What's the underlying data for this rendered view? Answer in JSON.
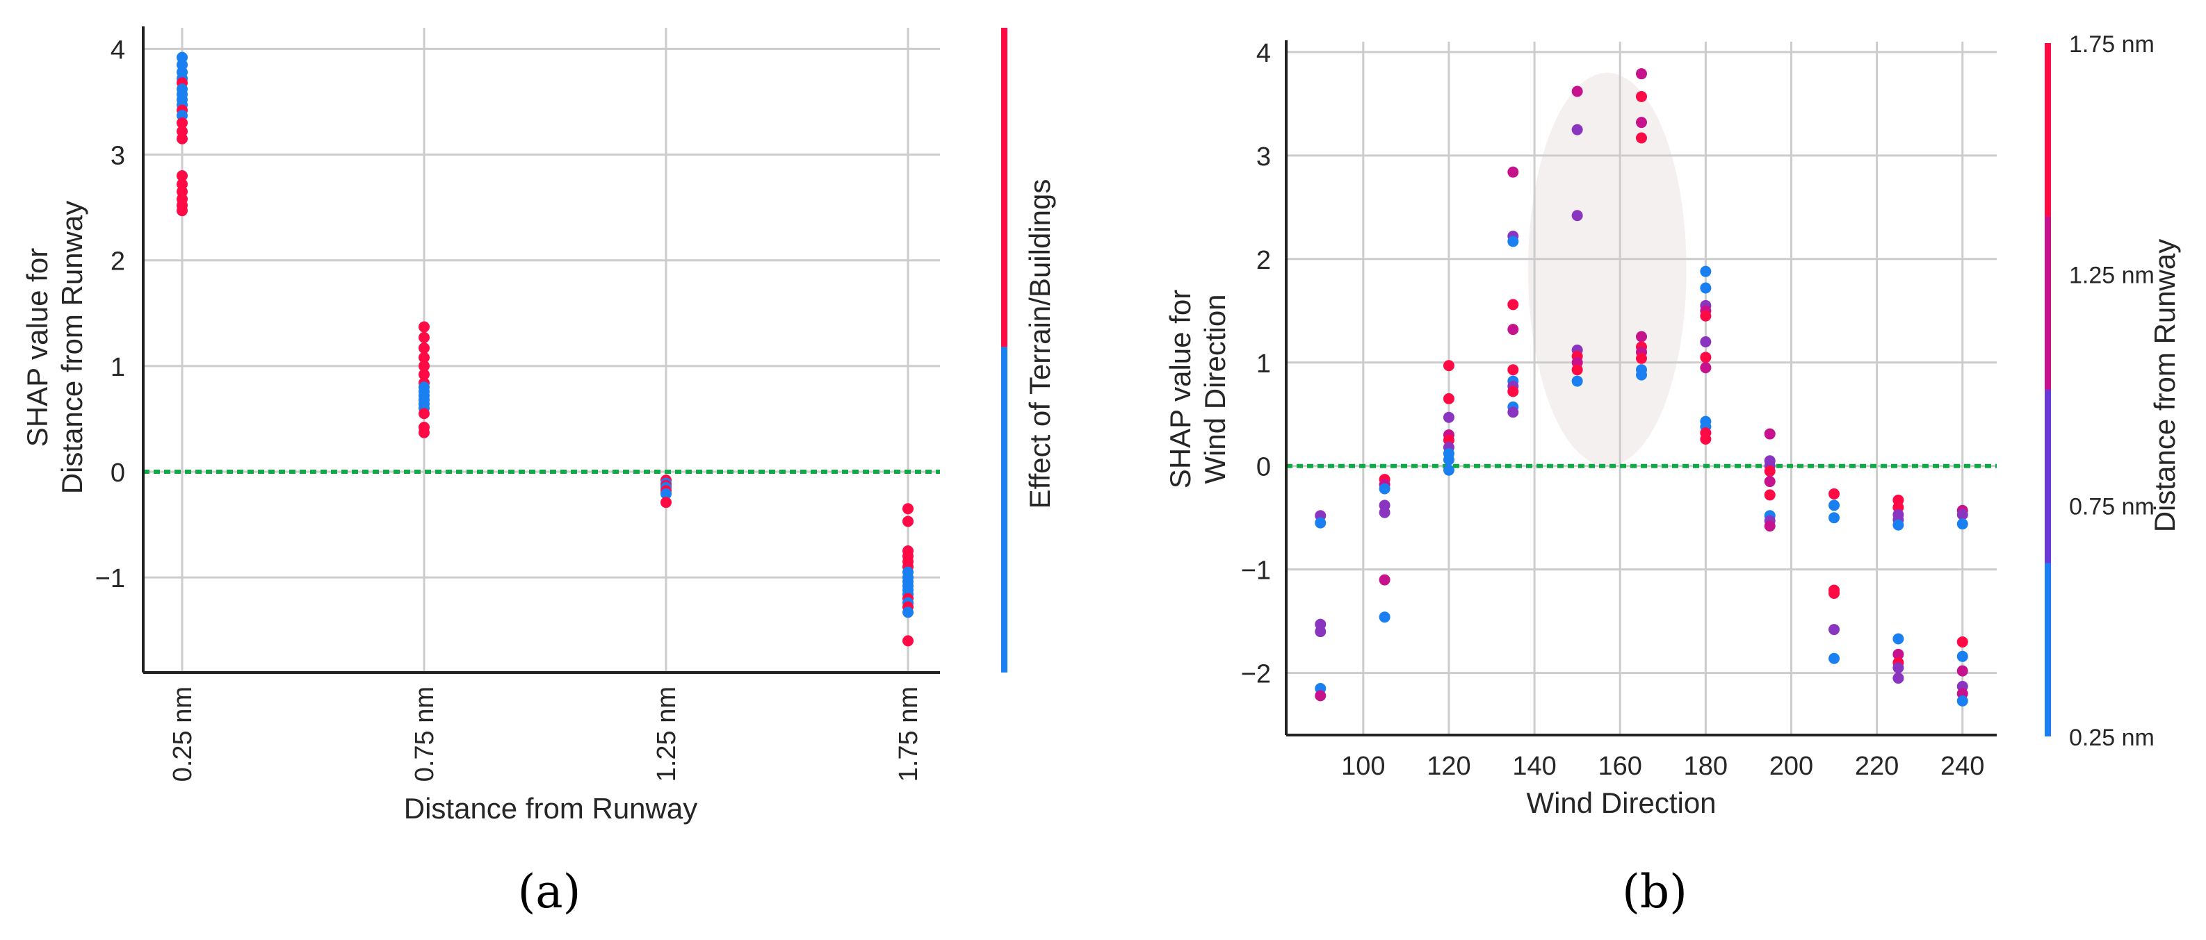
{
  "colors": {
    "red": "#ff0a45",
    "blue": "#1a7ff0",
    "purple_mid": "#8a35c0",
    "magenta": "#c6128c",
    "violet": "#6a3ad6",
    "grid": "#cccccc",
    "zero_line": "#11a848",
    "axis": "#222222",
    "highlight": "#f5f0f0"
  },
  "chart_data": [
    {
      "id": "a",
      "type": "scatter",
      "caption": "(a)",
      "xlabel": "Distance from Runway",
      "ylabel_lines": [
        "SHAP value for",
        "Distance from Runway"
      ],
      "categories": [
        "0.25 nm",
        "0.75 nm",
        "1.25 nm",
        "1.75 nm"
      ],
      "yticks": [
        -1,
        0,
        1,
        2,
        3,
        4
      ],
      "ytick_labels": [
        "−1",
        "0",
        "1",
        "2",
        "3",
        "4"
      ],
      "ylim": [
        -1.9,
        4.2
      ],
      "zero_line": 0,
      "colorbar": {
        "label": "Effect of Terrain/Buildings",
        "segments": [
          "#1a7ff0",
          "#ff0a45"
        ]
      },
      "points": [
        {
          "cat": 0,
          "y": 3.92,
          "c": "blue"
        },
        {
          "cat": 0,
          "y": 3.85,
          "c": "blue"
        },
        {
          "cat": 0,
          "y": 3.78,
          "c": "blue"
        },
        {
          "cat": 0,
          "y": 3.72,
          "c": "blue"
        },
        {
          "cat": 0,
          "y": 3.68,
          "c": "red"
        },
        {
          "cat": 0,
          "y": 3.62,
          "c": "blue"
        },
        {
          "cat": 0,
          "y": 3.57,
          "c": "blue"
        },
        {
          "cat": 0,
          "y": 3.52,
          "c": "blue"
        },
        {
          "cat": 0,
          "y": 3.47,
          "c": "blue"
        },
        {
          "cat": 0,
          "y": 3.42,
          "c": "red"
        },
        {
          "cat": 0,
          "y": 3.37,
          "c": "blue"
        },
        {
          "cat": 0,
          "y": 3.3,
          "c": "red"
        },
        {
          "cat": 0,
          "y": 3.22,
          "c": "red"
        },
        {
          "cat": 0,
          "y": 3.15,
          "c": "red"
        },
        {
          "cat": 0,
          "y": 2.8,
          "c": "red"
        },
        {
          "cat": 0,
          "y": 2.72,
          "c": "red"
        },
        {
          "cat": 0,
          "y": 2.65,
          "c": "red"
        },
        {
          "cat": 0,
          "y": 2.58,
          "c": "red"
        },
        {
          "cat": 0,
          "y": 2.52,
          "c": "red"
        },
        {
          "cat": 0,
          "y": 2.47,
          "c": "red"
        },
        {
          "cat": 1,
          "y": 1.37,
          "c": "red"
        },
        {
          "cat": 1,
          "y": 1.27,
          "c": "red"
        },
        {
          "cat": 1,
          "y": 1.17,
          "c": "red"
        },
        {
          "cat": 1,
          "y": 1.08,
          "c": "red"
        },
        {
          "cat": 1,
          "y": 1.0,
          "c": "red"
        },
        {
          "cat": 1,
          "y": 0.92,
          "c": "red"
        },
        {
          "cat": 1,
          "y": 0.84,
          "c": "red"
        },
        {
          "cat": 1,
          "y": 0.8,
          "c": "blue"
        },
        {
          "cat": 1,
          "y": 0.76,
          "c": "blue"
        },
        {
          "cat": 1,
          "y": 0.72,
          "c": "blue"
        },
        {
          "cat": 1,
          "y": 0.68,
          "c": "blue"
        },
        {
          "cat": 1,
          "y": 0.64,
          "c": "blue"
        },
        {
          "cat": 1,
          "y": 0.6,
          "c": "blue"
        },
        {
          "cat": 1,
          "y": 0.55,
          "c": "red"
        },
        {
          "cat": 1,
          "y": 0.42,
          "c": "red"
        },
        {
          "cat": 1,
          "y": 0.37,
          "c": "red"
        },
        {
          "cat": 2,
          "y": -0.08,
          "c": "red"
        },
        {
          "cat": 2,
          "y": -0.11,
          "c": "blue"
        },
        {
          "cat": 2,
          "y": -0.13,
          "c": "red"
        },
        {
          "cat": 2,
          "y": -0.15,
          "c": "blue"
        },
        {
          "cat": 2,
          "y": -0.18,
          "c": "red"
        },
        {
          "cat": 2,
          "y": -0.21,
          "c": "blue"
        },
        {
          "cat": 2,
          "y": -0.29,
          "c": "red"
        },
        {
          "cat": 3,
          "y": -0.35,
          "c": "red"
        },
        {
          "cat": 3,
          "y": -0.47,
          "c": "red"
        },
        {
          "cat": 3,
          "y": -0.75,
          "c": "red"
        },
        {
          "cat": 3,
          "y": -0.8,
          "c": "red"
        },
        {
          "cat": 3,
          "y": -0.85,
          "c": "red"
        },
        {
          "cat": 3,
          "y": -0.9,
          "c": "red"
        },
        {
          "cat": 3,
          "y": -0.95,
          "c": "blue"
        },
        {
          "cat": 3,
          "y": -1.0,
          "c": "blue"
        },
        {
          "cat": 3,
          "y": -1.04,
          "c": "blue"
        },
        {
          "cat": 3,
          "y": -1.08,
          "c": "blue"
        },
        {
          "cat": 3,
          "y": -1.12,
          "c": "blue"
        },
        {
          "cat": 3,
          "y": -1.16,
          "c": "blue"
        },
        {
          "cat": 3,
          "y": -1.2,
          "c": "red"
        },
        {
          "cat": 3,
          "y": -1.24,
          "c": "blue"
        },
        {
          "cat": 3,
          "y": -1.28,
          "c": "red"
        },
        {
          "cat": 3,
          "y": -1.33,
          "c": "blue"
        },
        {
          "cat": 3,
          "y": -1.6,
          "c": "red"
        }
      ]
    },
    {
      "id": "b",
      "type": "scatter",
      "caption": "(b)",
      "xlabel": "Wind Direction",
      "ylabel_lines": [
        "SHAP value for",
        "Wind Direction"
      ],
      "xticks": [
        100,
        120,
        140,
        160,
        180,
        200,
        220,
        240
      ],
      "xlim": [
        82,
        248
      ],
      "yticks": [
        -2,
        -1,
        0,
        1,
        2,
        3,
        4
      ],
      "ytick_labels": [
        "−2",
        "−1",
        "0",
        "1",
        "2",
        "3",
        "4"
      ],
      "ylim": [
        -2.6,
        4.1
      ],
      "zero_line": 0,
      "highlight_circle": {
        "cx": 157,
        "cy": 1.9,
        "rx": 18.5,
        "ry": 1.9
      },
      "colorbar": {
        "label": "Distance from Runway",
        "tick_labels": [
          "0.25 nm",
          "0.75 nm",
          "1.25 nm",
          "1.75 nm"
        ],
        "tick_positions": [
          0,
          0.333,
          0.667,
          1
        ],
        "segments": [
          "#1a7ff0",
          "#6a3ad6",
          "#c6128c",
          "#ff0a45"
        ]
      },
      "points": [
        {
          "x": 90,
          "y": -0.48,
          "c": "purple_mid"
        },
        {
          "x": 90,
          "y": -0.55,
          "c": "blue"
        },
        {
          "x": 90,
          "y": -1.53,
          "c": "purple_mid"
        },
        {
          "x": 90,
          "y": -1.6,
          "c": "purple_mid"
        },
        {
          "x": 90,
          "y": -2.15,
          "c": "blue"
        },
        {
          "x": 90,
          "y": -2.22,
          "c": "magenta"
        },
        {
          "x": 105,
          "y": -0.13,
          "c": "red"
        },
        {
          "x": 105,
          "y": -0.18,
          "c": "magenta"
        },
        {
          "x": 105,
          "y": -0.22,
          "c": "blue"
        },
        {
          "x": 105,
          "y": -0.38,
          "c": "purple_mid"
        },
        {
          "x": 105,
          "y": -0.45,
          "c": "purple_mid"
        },
        {
          "x": 105,
          "y": -1.1,
          "c": "magenta"
        },
        {
          "x": 105,
          "y": -1.46,
          "c": "blue"
        },
        {
          "x": 120,
          "y": 0.97,
          "c": "red"
        },
        {
          "x": 120,
          "y": 0.65,
          "c": "red"
        },
        {
          "x": 120,
          "y": 0.47,
          "c": "purple_mid"
        },
        {
          "x": 120,
          "y": 0.3,
          "c": "magenta"
        },
        {
          "x": 120,
          "y": 0.25,
          "c": "red"
        },
        {
          "x": 120,
          "y": 0.18,
          "c": "purple_mid"
        },
        {
          "x": 120,
          "y": 0.12,
          "c": "blue"
        },
        {
          "x": 120,
          "y": 0.06,
          "c": "blue"
        },
        {
          "x": 120,
          "y": -0.04,
          "c": "blue"
        },
        {
          "x": 135,
          "y": 2.84,
          "c": "magenta"
        },
        {
          "x": 135,
          "y": 2.22,
          "c": "purple_mid"
        },
        {
          "x": 135,
          "y": 2.17,
          "c": "blue"
        },
        {
          "x": 135,
          "y": 1.56,
          "c": "red"
        },
        {
          "x": 135,
          "y": 1.32,
          "c": "magenta"
        },
        {
          "x": 135,
          "y": 0.93,
          "c": "red"
        },
        {
          "x": 135,
          "y": 0.82,
          "c": "blue"
        },
        {
          "x": 135,
          "y": 0.77,
          "c": "purple_mid"
        },
        {
          "x": 135,
          "y": 0.72,
          "c": "red"
        },
        {
          "x": 135,
          "y": 0.57,
          "c": "blue"
        },
        {
          "x": 135,
          "y": 0.52,
          "c": "purple_mid"
        },
        {
          "x": 150,
          "y": 3.62,
          "c": "magenta"
        },
        {
          "x": 150,
          "y": 3.25,
          "c": "purple_mid"
        },
        {
          "x": 150,
          "y": 2.42,
          "c": "purple_mid"
        },
        {
          "x": 150,
          "y": 1.12,
          "c": "purple_mid"
        },
        {
          "x": 150,
          "y": 1.06,
          "c": "red"
        },
        {
          "x": 150,
          "y": 1.0,
          "c": "magenta"
        },
        {
          "x": 150,
          "y": 0.93,
          "c": "red"
        },
        {
          "x": 150,
          "y": 0.82,
          "c": "blue"
        },
        {
          "x": 165,
          "y": 3.79,
          "c": "magenta"
        },
        {
          "x": 165,
          "y": 3.57,
          "c": "red"
        },
        {
          "x": 165,
          "y": 3.32,
          "c": "magenta"
        },
        {
          "x": 165,
          "y": 3.17,
          "c": "red"
        },
        {
          "x": 165,
          "y": 1.25,
          "c": "magenta"
        },
        {
          "x": 165,
          "y": 1.15,
          "c": "red"
        },
        {
          "x": 165,
          "y": 1.1,
          "c": "magenta"
        },
        {
          "x": 165,
          "y": 1.04,
          "c": "red"
        },
        {
          "x": 165,
          "y": 0.93,
          "c": "blue"
        },
        {
          "x": 165,
          "y": 0.88,
          "c": "blue"
        },
        {
          "x": 180,
          "y": 1.88,
          "c": "blue"
        },
        {
          "x": 180,
          "y": 1.72,
          "c": "blue"
        },
        {
          "x": 180,
          "y": 1.55,
          "c": "purple_mid"
        },
        {
          "x": 180,
          "y": 1.5,
          "c": "magenta"
        },
        {
          "x": 180,
          "y": 1.45,
          "c": "red"
        },
        {
          "x": 180,
          "y": 1.2,
          "c": "purple_mid"
        },
        {
          "x": 180,
          "y": 1.05,
          "c": "red"
        },
        {
          "x": 180,
          "y": 0.95,
          "c": "magenta"
        },
        {
          "x": 180,
          "y": 0.43,
          "c": "blue"
        },
        {
          "x": 180,
          "y": 0.38,
          "c": "blue"
        },
        {
          "x": 180,
          "y": 0.32,
          "c": "red"
        },
        {
          "x": 180,
          "y": 0.26,
          "c": "red"
        },
        {
          "x": 195,
          "y": 0.31,
          "c": "magenta"
        },
        {
          "x": 195,
          "y": 0.05,
          "c": "purple_mid"
        },
        {
          "x": 195,
          "y": 0.0,
          "c": "purple_mid"
        },
        {
          "x": 195,
          "y": -0.05,
          "c": "red"
        },
        {
          "x": 195,
          "y": -0.15,
          "c": "magenta"
        },
        {
          "x": 195,
          "y": -0.28,
          "c": "red"
        },
        {
          "x": 195,
          "y": -0.48,
          "c": "blue"
        },
        {
          "x": 195,
          "y": -0.53,
          "c": "purple_mid"
        },
        {
          "x": 195,
          "y": -0.58,
          "c": "magenta"
        },
        {
          "x": 210,
          "y": -0.27,
          "c": "red"
        },
        {
          "x": 210,
          "y": -0.38,
          "c": "blue"
        },
        {
          "x": 210,
          "y": -0.5,
          "c": "blue"
        },
        {
          "x": 210,
          "y": -1.2,
          "c": "red"
        },
        {
          "x": 210,
          "y": -1.23,
          "c": "red"
        },
        {
          "x": 210,
          "y": -1.58,
          "c": "purple_mid"
        },
        {
          "x": 210,
          "y": -1.86,
          "c": "blue"
        },
        {
          "x": 225,
          "y": -0.33,
          "c": "red"
        },
        {
          "x": 225,
          "y": -0.4,
          "c": "red"
        },
        {
          "x": 225,
          "y": -0.47,
          "c": "purple_mid"
        },
        {
          "x": 225,
          "y": -0.52,
          "c": "purple_mid"
        },
        {
          "x": 225,
          "y": -0.57,
          "c": "blue"
        },
        {
          "x": 225,
          "y": -1.67,
          "c": "blue"
        },
        {
          "x": 225,
          "y": -1.82,
          "c": "magenta"
        },
        {
          "x": 225,
          "y": -1.9,
          "c": "red"
        },
        {
          "x": 225,
          "y": -1.95,
          "c": "purple_mid"
        },
        {
          "x": 225,
          "y": -2.05,
          "c": "purple_mid"
        },
        {
          "x": 240,
          "y": -0.43,
          "c": "magenta"
        },
        {
          "x": 240,
          "y": -0.47,
          "c": "purple_mid"
        },
        {
          "x": 240,
          "y": -0.56,
          "c": "blue"
        },
        {
          "x": 240,
          "y": -1.7,
          "c": "red"
        },
        {
          "x": 240,
          "y": -1.84,
          "c": "blue"
        },
        {
          "x": 240,
          "y": -1.98,
          "c": "magenta"
        },
        {
          "x": 240,
          "y": -2.13,
          "c": "purple_mid"
        },
        {
          "x": 240,
          "y": -2.2,
          "c": "magenta"
        },
        {
          "x": 240,
          "y": -2.27,
          "c": "blue"
        }
      ]
    }
  ]
}
